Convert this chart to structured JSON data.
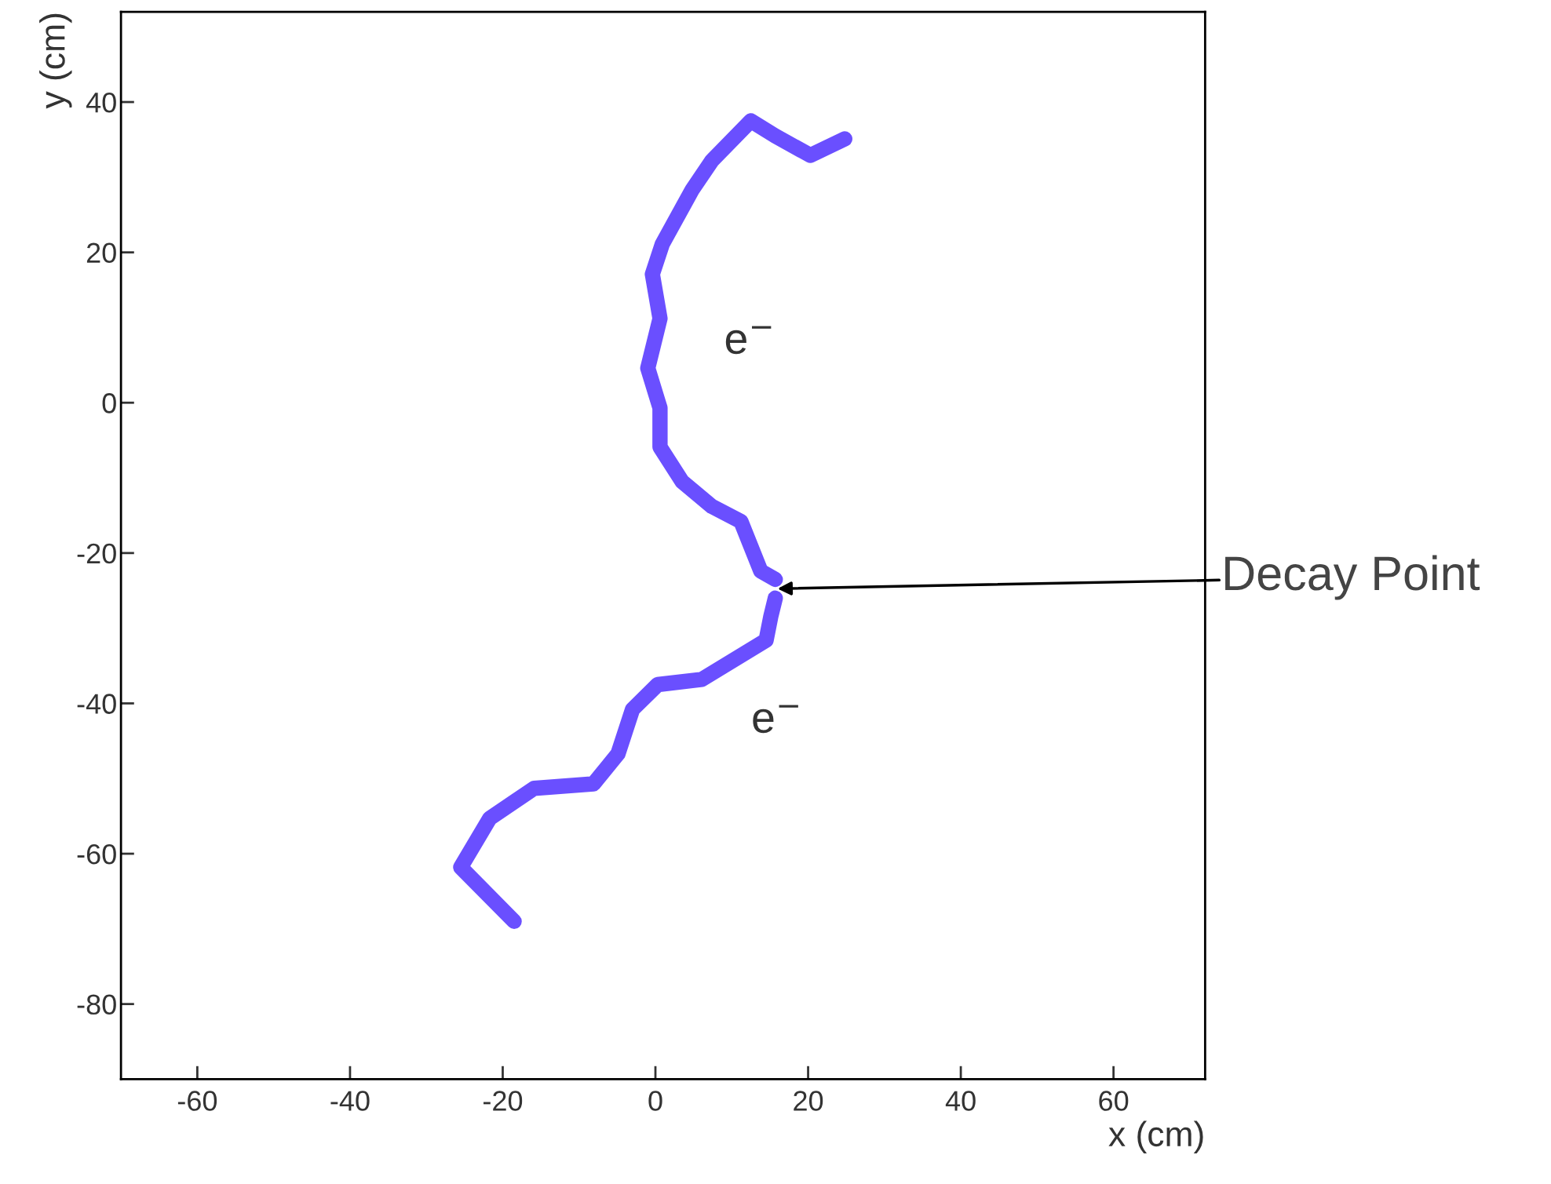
{
  "chart_data": {
    "type": "line",
    "xlabel": "x (cm)",
    "ylabel": "y (cm)",
    "xlim": [
      -70,
      72
    ],
    "ylim": [
      -90,
      52
    ],
    "xticks": [
      -60,
      -40,
      -20,
      0,
      20,
      40,
      60
    ],
    "yticks": [
      -80,
      -60,
      -40,
      -20,
      0,
      20,
      40
    ],
    "grid": false,
    "marker": "none",
    "line_style": "solid",
    "series": [
      {
        "color": "#5a3cff",
        "x": [
          15.7,
          15.1,
          14.5,
          6.1,
          0.3,
          -3.0,
          -4.9,
          -8.1,
          -15.9,
          -21.7,
          -25.5,
          -18.5
        ],
        "values": [
          -26.0,
          -28.5,
          -31.6,
          -36.8,
          -37.5,
          -40.8,
          -46.7,
          -50.7,
          -51.3,
          -55.3,
          -61.8,
          -69.0
        ]
      },
      {
        "color": "#5a3cff",
        "x": [
          15.7,
          13.8,
          11.2,
          7.4,
          3.5,
          0.6,
          0.6,
          -1.0,
          0.6,
          -0.4,
          0.9,
          4.8,
          7.4,
          12.5,
          15.7,
          20.3,
          24.8
        ],
        "values": [
          -23.5,
          -22.4,
          -15.8,
          -13.8,
          -10.5,
          -5.9,
          -0.7,
          4.6,
          11.2,
          17.1,
          21.1,
          28.3,
          32.2,
          37.5,
          35.5,
          32.9,
          35.1
        ]
      }
    ],
    "annotations": [
      "e$^{−}$",
      "e$^{−}$",
      "Decay Point"
    ]
  }
}
